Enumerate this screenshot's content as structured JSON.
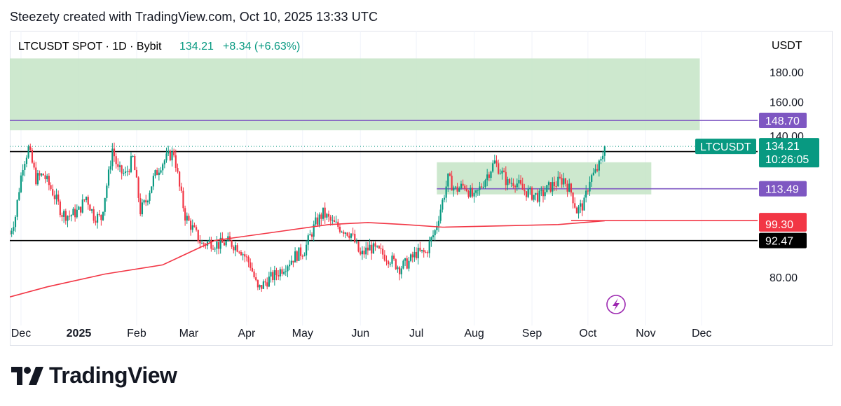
{
  "credit": "Steezety created with TradingView.com, Oct 10, 2025 13:33 UTC",
  "brand": "TradingView",
  "header": {
    "symbol_text": "LTCUSDT SPOT · 1D · Bybit",
    "price": "134.21",
    "change": "+8.34 (+6.63%)"
  },
  "colors": {
    "up": "#089981",
    "down": "#f23645",
    "zone": "#c8e6c9",
    "purple": "#7e57c2",
    "ma": "#f23645",
    "black": "#000000"
  },
  "chart_data": {
    "type": "candlestick",
    "currency": "USDT",
    "y_ticks": [
      "180.00",
      "160.00",
      "140.00",
      "80.00"
    ],
    "x_ticks": [
      "Dec",
      "2025",
      "Feb",
      "Mar",
      "Apr",
      "May",
      "Jun",
      "Jul",
      "Aug",
      "Sep",
      "Oct",
      "Nov",
      "Dec"
    ],
    "ylim": [
      72,
      196
    ],
    "close_series": [
      [
        "2024-11-25",
        95
      ],
      [
        "2024-11-28",
        102
      ],
      [
        "2024-12-02",
        125
      ],
      [
        "2024-12-05",
        133
      ],
      [
        "2024-12-09",
        118
      ],
      [
        "2024-12-13",
        120
      ],
      [
        "2024-12-18",
        112
      ],
      [
        "2024-12-23",
        103
      ],
      [
        "2024-12-27",
        102
      ],
      [
        "2025-01-01",
        104
      ],
      [
        "2025-01-05",
        110
      ],
      [
        "2025-01-09",
        102
      ],
      [
        "2025-01-13",
        101
      ],
      [
        "2025-01-17",
        120
      ],
      [
        "2025-01-19",
        133
      ],
      [
        "2025-01-22",
        122
      ],
      [
        "2025-01-26",
        120
      ],
      [
        "2025-01-30",
        128
      ],
      [
        "2025-02-03",
        104
      ],
      [
        "2025-02-06",
        108
      ],
      [
        "2025-02-10",
        118
      ],
      [
        "2025-02-14",
        125
      ],
      [
        "2025-02-18",
        129
      ],
      [
        "2025-02-21",
        131
      ],
      [
        "2025-02-24",
        114
      ],
      [
        "2025-02-27",
        102
      ],
      [
        "2025-03-03",
        97
      ],
      [
        "2025-03-08",
        91
      ],
      [
        "2025-03-12",
        92
      ],
      [
        "2025-03-17",
        91
      ],
      [
        "2025-03-22",
        92
      ],
      [
        "2025-03-28",
        90
      ],
      [
        "2025-04-03",
        84
      ],
      [
        "2025-04-07",
        76
      ],
      [
        "2025-04-12",
        79
      ],
      [
        "2025-04-17",
        81
      ],
      [
        "2025-04-22",
        84
      ],
      [
        "2025-04-27",
        87
      ],
      [
        "2025-05-02",
        89
      ],
      [
        "2025-05-08",
        99
      ],
      [
        "2025-05-12",
        103
      ],
      [
        "2025-05-17",
        99
      ],
      [
        "2025-05-22",
        97
      ],
      [
        "2025-05-27",
        95
      ],
      [
        "2025-06-01",
        87
      ],
      [
        "2025-06-06",
        90
      ],
      [
        "2025-06-12",
        88
      ],
      [
        "2025-06-17",
        86
      ],
      [
        "2025-06-22",
        83
      ],
      [
        "2025-06-27",
        85
      ],
      [
        "2025-07-01",
        88
      ],
      [
        "2025-07-06",
        88
      ],
      [
        "2025-07-11",
        96
      ],
      [
        "2025-07-15",
        108
      ],
      [
        "2025-07-18",
        118
      ],
      [
        "2025-07-22",
        113
      ],
      [
        "2025-07-27",
        115
      ],
      [
        "2025-08-01",
        109
      ],
      [
        "2025-08-05",
        115
      ],
      [
        "2025-08-08",
        120
      ],
      [
        "2025-08-12",
        126
      ],
      [
        "2025-08-15",
        122
      ],
      [
        "2025-08-19",
        116
      ],
      [
        "2025-08-23",
        117
      ],
      [
        "2025-08-27",
        113
      ],
      [
        "2025-09-01",
        111
      ],
      [
        "2025-09-05",
        110
      ],
      [
        "2025-09-10",
        114
      ],
      [
        "2025-09-14",
        116
      ],
      [
        "2025-09-18",
        118
      ],
      [
        "2025-09-22",
        112
      ],
      [
        "2025-09-25",
        104
      ],
      [
        "2025-09-29",
        107
      ],
      [
        "2025-10-02",
        118
      ],
      [
        "2025-10-05",
        121
      ],
      [
        "2025-10-08",
        126
      ],
      [
        "2025-10-10",
        134.21
      ]
    ],
    "moving_average": [
      [
        "2024-11-25",
        74
      ],
      [
        "2024-12-15",
        77
      ],
      [
        "2025-01-15",
        81
      ],
      [
        "2025-02-15",
        84
      ],
      [
        "2025-03-15",
        92.5
      ],
      [
        "2025-04-15",
        95.5
      ],
      [
        "2025-05-15",
        98.5
      ],
      [
        "2025-06-05",
        99.3
      ],
      [
        "2025-06-25",
        98.5
      ],
      [
        "2025-07-15",
        97.5
      ],
      [
        "2025-08-15",
        98
      ],
      [
        "2025-09-15",
        98.5
      ],
      [
        "2025-10-10",
        100
      ]
    ],
    "zones": [
      {
        "from": "2024-11-25",
        "to": "2025-11-30",
        "low": 143,
        "high": 190
      },
      {
        "from": "2025-07-12",
        "to": "2025-11-04",
        "low": 111,
        "high": 126
      }
    ],
    "levels": [
      {
        "value": "148.70",
        "color": "#7e57c2",
        "from": "2024-11-25"
      },
      {
        "value": "131.44",
        "color": "#000000",
        "from": "2024-11-25"
      },
      {
        "value": "113.49",
        "color": "#7e57c2",
        "from": "2025-07-12"
      },
      {
        "value": "100.06",
        "color": "#f23645",
        "from": "2025-09-22"
      },
      {
        "value": "92.47",
        "color": "#000000",
        "from": "2024-11-25"
      }
    ],
    "price_labels": [
      {
        "text": "134.21",
        "sub": "10:26:05",
        "color": "#089981"
      },
      {
        "text": "99.30",
        "color": "#f23645",
        "value": 99.3
      }
    ],
    "symbol_label": "LTCUSDT",
    "last_price": 134.21
  }
}
